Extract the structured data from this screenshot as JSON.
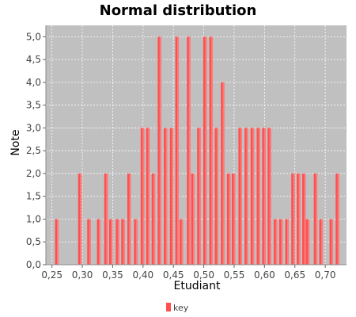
{
  "chart_data": {
    "type": "bar",
    "title": "Normal distribution",
    "xlabel": "Etudiant",
    "ylabel": "Note",
    "ylim": [
      0,
      5.25
    ],
    "xlim": [
      0.24,
      0.735
    ],
    "bar_width": 0.0058,
    "y_ticks": [
      "0,0",
      "0,5",
      "1,0",
      "1,5",
      "2,0",
      "2,5",
      "3,0",
      "3,5",
      "4,0",
      "4,5",
      "5,0"
    ],
    "x_ticks": [
      "0,25",
      "0,30",
      "0,35",
      "0,40",
      "0,45",
      "0,50",
      "0,55",
      "0,60",
      "0,65",
      "0,70"
    ],
    "grid": true,
    "legend": {
      "position": "bottom-center",
      "entries": [
        "key"
      ]
    },
    "colors": {
      "bar": "#ff5050",
      "plot_bg": "#c0c0c0",
      "grid": "#ffffff"
    },
    "series": [
      {
        "name": "key",
        "points": [
          {
            "x": 0.258,
            "y": 1
          },
          {
            "x": 0.296,
            "y": 2
          },
          {
            "x": 0.311,
            "y": 1
          },
          {
            "x": 0.327,
            "y": 1
          },
          {
            "x": 0.339,
            "y": 2
          },
          {
            "x": 0.347,
            "y": 1
          },
          {
            "x": 0.358,
            "y": 1
          },
          {
            "x": 0.367,
            "y": 1
          },
          {
            "x": 0.377,
            "y": 2
          },
          {
            "x": 0.388,
            "y": 1
          },
          {
            "x": 0.399,
            "y": 3
          },
          {
            "x": 0.408,
            "y": 3
          },
          {
            "x": 0.417,
            "y": 2
          },
          {
            "x": 0.427,
            "y": 5
          },
          {
            "x": 0.437,
            "y": 3
          },
          {
            "x": 0.447,
            "y": 3
          },
          {
            "x": 0.456,
            "y": 5
          },
          {
            "x": 0.463,
            "y": 1
          },
          {
            "x": 0.475,
            "y": 5
          },
          {
            "x": 0.482,
            "y": 2
          },
          {
            "x": 0.492,
            "y": 3
          },
          {
            "x": 0.502,
            "y": 5
          },
          {
            "x": 0.512,
            "y": 5
          },
          {
            "x": 0.521,
            "y": 3
          },
          {
            "x": 0.531,
            "y": 4
          },
          {
            "x": 0.541,
            "y": 2
          },
          {
            "x": 0.549,
            "y": 2
          },
          {
            "x": 0.56,
            "y": 3
          },
          {
            "x": 0.57,
            "y": 3
          },
          {
            "x": 0.58,
            "y": 3
          },
          {
            "x": 0.59,
            "y": 3
          },
          {
            "x": 0.599,
            "y": 3
          },
          {
            "x": 0.608,
            "y": 3
          },
          {
            "x": 0.618,
            "y": 1
          },
          {
            "x": 0.627,
            "y": 1
          },
          {
            "x": 0.637,
            "y": 1
          },
          {
            "x": 0.647,
            "y": 2
          },
          {
            "x": 0.656,
            "y": 2
          },
          {
            "x": 0.665,
            "y": 2
          },
          {
            "x": 0.671,
            "y": 1
          },
          {
            "x": 0.684,
            "y": 2
          },
          {
            "x": 0.693,
            "y": 1
          },
          {
            "x": 0.71,
            "y": 1
          },
          {
            "x": 0.72,
            "y": 2
          }
        ]
      }
    ]
  }
}
